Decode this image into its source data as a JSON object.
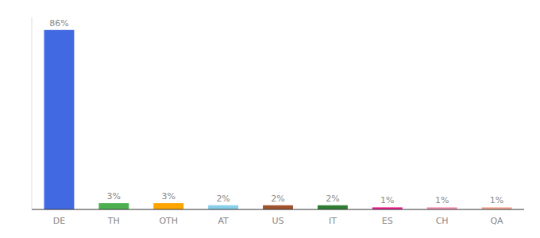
{
  "chart_data": {
    "type": "bar",
    "categories": [
      "DE",
      "TH",
      "OTH",
      "AT",
      "US",
      "IT",
      "ES",
      "CH",
      "QA"
    ],
    "values": [
      86,
      3,
      3,
      2,
      2,
      2,
      1,
      1,
      1
    ],
    "value_labels": [
      "86%",
      "3%",
      "3%",
      "2%",
      "2%",
      "2%",
      "1%",
      "1%",
      "1%"
    ],
    "data_labels": true,
    "colors": [
      "#4169e1",
      "#4caf50",
      "#ffa500",
      "#87ceeb",
      "#a0522d",
      "#2e7d32",
      "#e91e8c",
      "#f48fb1",
      "#f4a490"
    ],
    "ylim": [
      0,
      92
    ],
    "tick_labels": "x",
    "grid": false
  }
}
